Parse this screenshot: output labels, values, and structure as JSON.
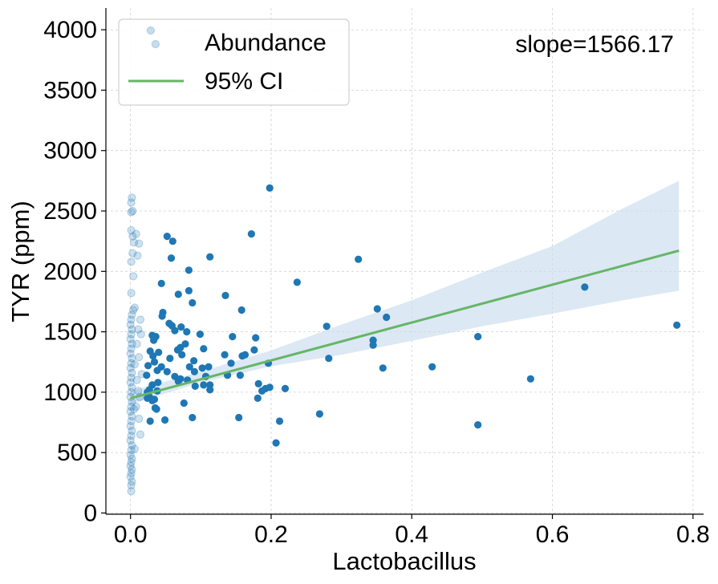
{
  "chart_data": {
    "type": "scatter",
    "xlabel": "Lactobacillus",
    "ylabel": "TYR (ppm)",
    "xlim": [
      -0.035,
      0.815
    ],
    "ylim": [
      -10,
      4180
    ],
    "x_ticks": [
      0.0,
      0.2,
      0.4,
      0.6,
      0.8
    ],
    "x_tick_labels": [
      "0.0",
      "0.2",
      "0.4",
      "0.6",
      "0.8"
    ],
    "y_ticks": [
      0,
      500,
      1000,
      1500,
      2000,
      2500,
      3000,
      3500,
      4000
    ],
    "y_tick_labels": [
      "0",
      "500",
      "1000",
      "1500",
      "2000",
      "2500",
      "3000",
      "3500",
      "4000"
    ],
    "grid": true,
    "legend": {
      "placement": "top-left",
      "entries": [
        {
          "label": "Abundance",
          "kind": "marker"
        },
        {
          "label": "95% CI",
          "kind": "line"
        }
      ]
    },
    "annotation": "slope=1566.17",
    "colors": {
      "points": "#1f77b4",
      "fit_line": "#66b566",
      "ci_band": "#c9dcee"
    },
    "fit": {
      "slope": 1566.17,
      "intercept": 950,
      "x_range": [
        0.0,
        0.78
      ]
    },
    "ci_band": {
      "x": [
        0.0,
        0.1,
        0.2,
        0.3,
        0.4,
        0.5,
        0.6,
        0.7,
        0.78
      ],
      "lower": [
        900,
        1080,
        1215,
        1310,
        1425,
        1545,
        1650,
        1760,
        1840
      ],
      "upper": [
        1010,
        1170,
        1345,
        1560,
        1760,
        1990,
        2210,
        2520,
        2750
      ]
    },
    "series": [
      {
        "name": "Abundance",
        "faded": true,
        "points": [
          [
            0.001,
            180
          ],
          [
            0.001,
            230
          ],
          [
            0.002,
            260
          ],
          [
            0.0,
            300
          ],
          [
            0.001,
            330
          ],
          [
            0.002,
            360
          ],
          [
            0.0,
            390
          ],
          [
            0.001,
            420
          ],
          [
            0.002,
            450
          ],
          [
            0.0,
            480
          ],
          [
            0.001,
            520
          ],
          [
            0.002,
            560
          ],
          [
            0.0,
            600
          ],
          [
            0.001,
            640
          ],
          [
            0.002,
            680
          ],
          [
            0.0,
            720
          ],
          [
            0.001,
            760
          ],
          [
            0.002,
            800
          ],
          [
            0.0,
            840
          ],
          [
            0.001,
            880
          ],
          [
            0.002,
            920
          ],
          [
            0.0,
            960
          ],
          [
            0.001,
            1000
          ],
          [
            0.002,
            1040
          ],
          [
            0.0,
            1080
          ],
          [
            0.001,
            1120
          ],
          [
            0.002,
            1160
          ],
          [
            0.0,
            1200
          ],
          [
            0.001,
            1240
          ],
          [
            0.002,
            1280
          ],
          [
            0.0,
            1320
          ],
          [
            0.001,
            1360
          ],
          [
            0.002,
            1400
          ],
          [
            0.0,
            1440
          ],
          [
            0.001,
            1480
          ],
          [
            0.002,
            1520
          ],
          [
            0.0,
            1560
          ],
          [
            0.001,
            1600
          ],
          [
            0.002,
            1640
          ],
          [
            0.004,
            1680
          ],
          [
            0.006,
            1700
          ],
          [
            0.001,
            1820
          ],
          [
            0.004,
            1960
          ],
          [
            0.001,
            2080
          ],
          [
            0.003,
            2150
          ],
          [
            0.005,
            2240
          ],
          [
            0.003,
            2290
          ],
          [
            0.001,
            2340
          ],
          [
            0.001,
            2490
          ],
          [
            0.003,
            2500
          ],
          [
            0.001,
            2570
          ],
          [
            0.002,
            2610
          ],
          [
            0.008,
            2310
          ],
          [
            0.012,
            2230
          ],
          [
            0.01,
            2130
          ],
          [
            0.014,
            1600
          ],
          [
            0.011,
            1520
          ],
          [
            0.015,
            1480
          ],
          [
            0.012,
            1290
          ],
          [
            0.016,
            1150
          ],
          [
            0.009,
            1100
          ],
          [
            0.011,
            1010
          ],
          [
            0.013,
            960
          ],
          [
            0.008,
            880
          ],
          [
            0.012,
            780
          ],
          [
            0.014,
            650
          ],
          [
            0.006,
            530
          ],
          [
            0.009,
            1400
          ],
          [
            0.006,
            1230
          ],
          [
            0.005,
            860
          ],
          [
            0.027,
            3990
          ],
          [
            0.034,
            3880
          ]
        ]
      },
      {
        "name": "Abundance",
        "faded": false,
        "points": [
          [
            0.198,
            2690
          ],
          [
            0.172,
            2310
          ],
          [
            0.052,
            2290
          ],
          [
            0.06,
            2250
          ],
          [
            0.113,
            2120
          ],
          [
            0.058,
            2110
          ],
          [
            0.324,
            2100
          ],
          [
            0.083,
            2010
          ],
          [
            0.237,
            1910
          ],
          [
            0.044,
            1900
          ],
          [
            0.083,
            1840
          ],
          [
            0.068,
            1810
          ],
          [
            0.135,
            1800
          ],
          [
            0.088,
            1740
          ],
          [
            0.158,
            1680
          ],
          [
            0.351,
            1690
          ],
          [
            0.046,
            1660
          ],
          [
            0.045,
            1630
          ],
          [
            0.364,
            1620
          ],
          [
            0.055,
            1570
          ],
          [
            0.059,
            1550
          ],
          [
            0.279,
            1545
          ],
          [
            0.072,
            1540
          ],
          [
            0.063,
            1510
          ],
          [
            0.08,
            1500
          ],
          [
            0.099,
            1480
          ],
          [
            0.031,
            1470
          ],
          [
            0.036,
            1460
          ],
          [
            0.033,
            1430
          ],
          [
            0.145,
            1460
          ],
          [
            0.178,
            1450
          ],
          [
            0.345,
            1430
          ],
          [
            0.078,
            1400
          ],
          [
            0.071,
            1370
          ],
          [
            0.067,
            1350
          ],
          [
            0.104,
            1360
          ],
          [
            0.176,
            1350
          ],
          [
            0.345,
            1390
          ],
          [
            0.028,
            1340
          ],
          [
            0.04,
            1330
          ],
          [
            0.032,
            1300
          ],
          [
            0.073,
            1310
          ],
          [
            0.134,
            1310
          ],
          [
            0.159,
            1300
          ],
          [
            0.163,
            1310
          ],
          [
            0.282,
            1280
          ],
          [
            0.056,
            1280
          ],
          [
            0.09,
            1260
          ],
          [
            0.034,
            1250
          ],
          [
            0.143,
            1240
          ],
          [
            0.196,
            1240
          ],
          [
            0.025,
            1220
          ],
          [
            0.044,
            1210
          ],
          [
            0.084,
            1210
          ],
          [
            0.102,
            1200
          ],
          [
            0.111,
            1210
          ],
          [
            0.359,
            1200
          ],
          [
            0.429,
            1210
          ],
          [
            0.038,
            1180
          ],
          [
            0.052,
            1170
          ],
          [
            0.091,
            1170
          ],
          [
            0.063,
            1130
          ],
          [
            0.071,
            1110
          ],
          [
            0.081,
            1100
          ],
          [
            0.107,
            1130
          ],
          [
            0.138,
            1140
          ],
          [
            0.156,
            1140
          ],
          [
            0.092,
            1050
          ],
          [
            0.104,
            1060
          ],
          [
            0.113,
            1060
          ],
          [
            0.569,
            1110
          ],
          [
            0.039,
            1080
          ],
          [
            0.031,
            1060
          ],
          [
            0.068,
            1090
          ],
          [
            0.113,
            1020
          ],
          [
            0.182,
            1070
          ],
          [
            0.192,
            1030
          ],
          [
            0.198,
            1040
          ],
          [
            0.22,
            1030
          ],
          [
            0.187,
            1010
          ],
          [
            0.024,
            1000
          ],
          [
            0.038,
            1010
          ],
          [
            0.027,
            960
          ],
          [
            0.024,
            950
          ],
          [
            0.034,
            940
          ],
          [
            0.031,
            930
          ],
          [
            0.181,
            950
          ],
          [
            0.076,
            910
          ],
          [
            0.035,
            870
          ],
          [
            0.037,
            860
          ],
          [
            0.154,
            790
          ],
          [
            0.088,
            790
          ],
          [
            0.049,
            770
          ],
          [
            0.028,
            760
          ],
          [
            0.212,
            760
          ],
          [
            0.269,
            820
          ],
          [
            0.494,
            1460
          ],
          [
            0.494,
            730
          ],
          [
            0.646,
            1870
          ],
          [
            0.777,
            1555
          ],
          [
            0.207,
            580
          ],
          [
            0.023,
            1140
          ],
          [
            0.027,
            1020
          ]
        ]
      }
    ]
  }
}
